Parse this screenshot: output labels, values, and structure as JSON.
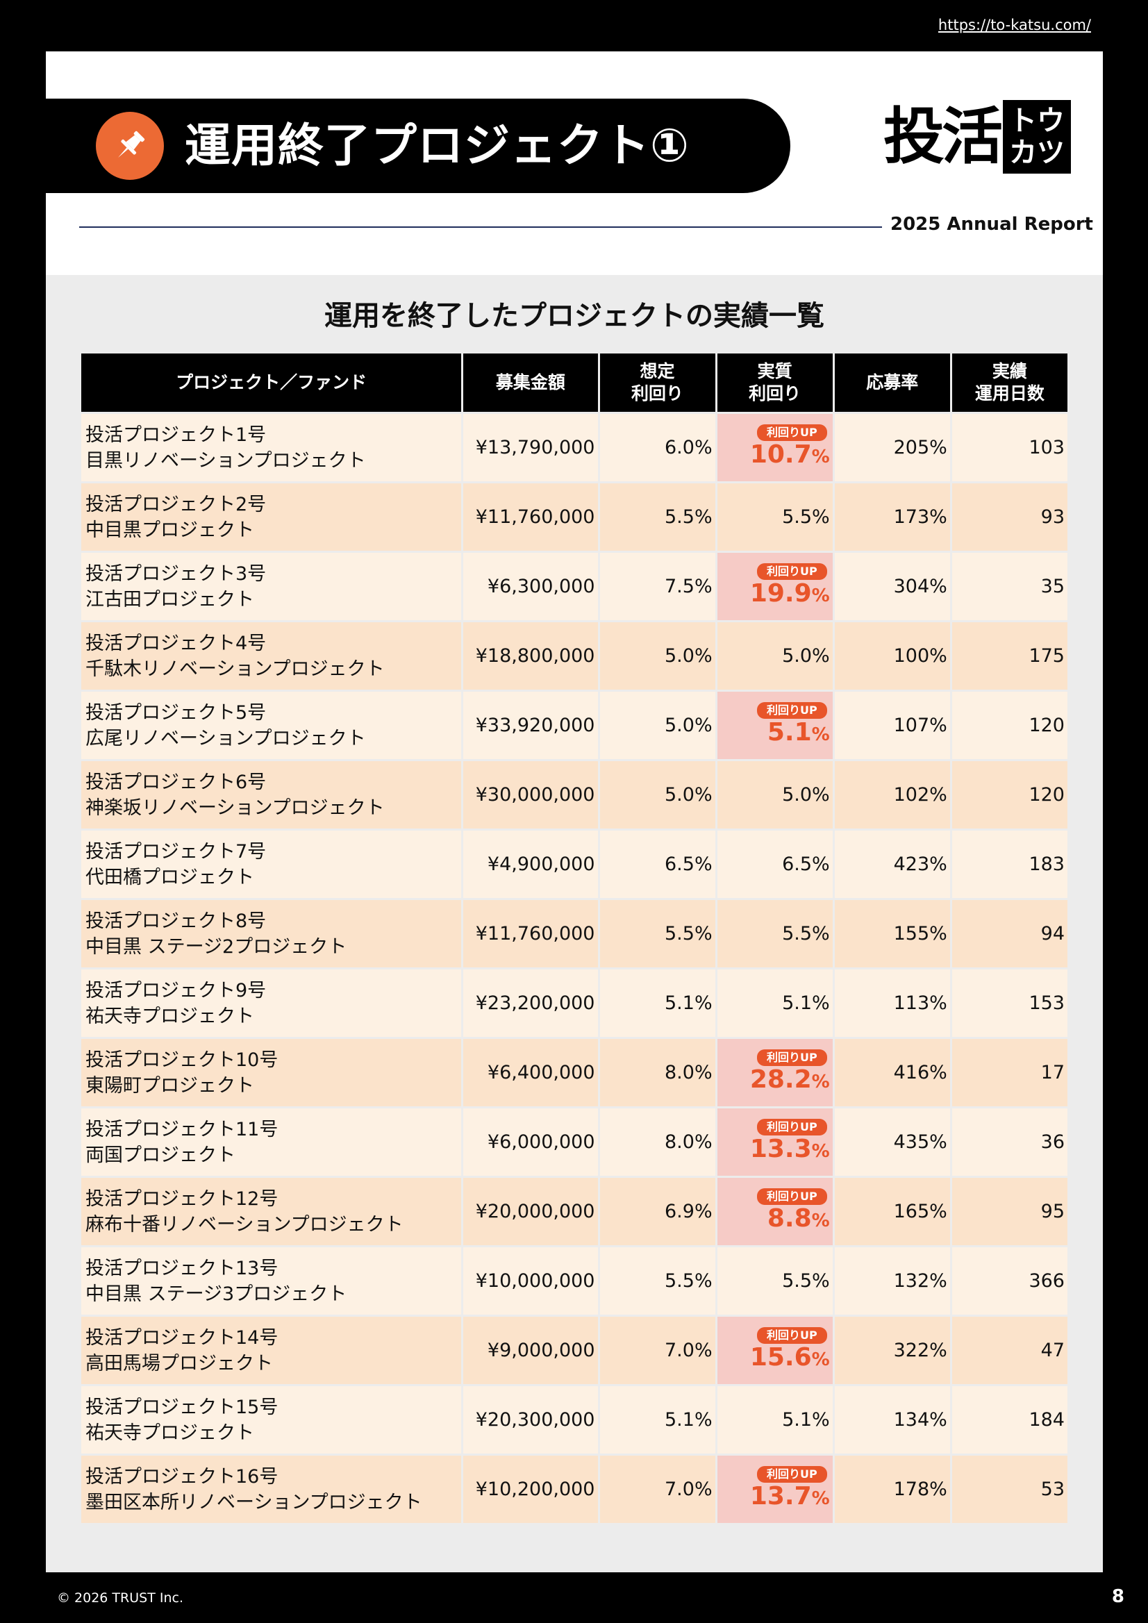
{
  "header": {
    "url": "https://to-katsu.com/",
    "title": "運用終了プロジェクト①",
    "logo_main": "投活",
    "logo_box_top": "トウ",
    "logo_box_bottom": "カツ",
    "report_label": "2025 Annual Report",
    "pin_icon": "pushpin-icon",
    "accent_color": "#ec6a34"
  },
  "section_title": "運用を終了したプロジェクトの実績一覧",
  "table": {
    "headers": {
      "project": "プロジェクト／ファンド",
      "amount": "募集金額",
      "expected_1": "想定",
      "expected_2": "利回り",
      "actual_1": "実質",
      "actual_2": "利回り",
      "rate": "応募率",
      "days_1": "実績",
      "days_2": "運用日数"
    },
    "badge_label": "利回りUP",
    "rows": [
      {
        "line1": "投活プロジェクト1号",
        "line2": "目黒リノベーションプロジェクト",
        "amount": "¥13,790,000",
        "expected": "6.0%",
        "actual": "10.7",
        "up": true,
        "rate": "205%",
        "days": "103"
      },
      {
        "line1": "投活プロジェクト2号",
        "line2": "中目黒プロジェクト",
        "amount": "¥11,760,000",
        "expected": "5.5%",
        "actual": "5.5%",
        "up": false,
        "rate": "173%",
        "days": "93"
      },
      {
        "line1": "投活プロジェクト3号",
        "line2": "江古田プロジェクト",
        "amount": "¥6,300,000",
        "expected": "7.5%",
        "actual": "19.9",
        "up": true,
        "rate": "304%",
        "days": "35"
      },
      {
        "line1": "投活プロジェクト4号",
        "line2": "千駄木リノベーションプロジェクト",
        "amount": "¥18,800,000",
        "expected": "5.0%",
        "actual": "5.0%",
        "up": false,
        "rate": "100%",
        "days": "175"
      },
      {
        "line1": "投活プロジェクト5号",
        "line2": "広尾リノベーションプロジェクト",
        "amount": "¥33,920,000",
        "expected": "5.0%",
        "actual": "5.1",
        "up": true,
        "rate": "107%",
        "days": "120"
      },
      {
        "line1": "投活プロジェクト6号",
        "line2": "神楽坂リノベーションプロジェクト",
        "amount": "¥30,000,000",
        "expected": "5.0%",
        "actual": "5.0%",
        "up": false,
        "rate": "102%",
        "days": "120"
      },
      {
        "line1": "投活プロジェクト7号",
        "line2": "代田橋プロジェクト",
        "amount": "¥4,900,000",
        "expected": "6.5%",
        "actual": "6.5%",
        "up": false,
        "rate": "423%",
        "days": "183"
      },
      {
        "line1": "投活プロジェクト8号",
        "line2": "中目黒 ステージ2プロジェクト",
        "amount": "¥11,760,000",
        "expected": "5.5%",
        "actual": "5.5%",
        "up": false,
        "rate": "155%",
        "days": "94"
      },
      {
        "line1": "投活プロジェクト9号",
        "line2": "祐天寺プロジェクト",
        "amount": "¥23,200,000",
        "expected": "5.1%",
        "actual": "5.1%",
        "up": false,
        "rate": "113%",
        "days": "153"
      },
      {
        "line1": "投活プロジェクト10号",
        "line2": "東陽町プロジェクト",
        "amount": "¥6,400,000",
        "expected": "8.0%",
        "actual": "28.2",
        "up": true,
        "rate": "416%",
        "days": "17"
      },
      {
        "line1": "投活プロジェクト11号",
        "line2": "両国プロジェクト",
        "amount": "¥6,000,000",
        "expected": "8.0%",
        "actual": "13.3",
        "up": true,
        "rate": "435%",
        "days": "36"
      },
      {
        "line1": "投活プロジェクト12号",
        "line2": "麻布十番リノベーションプロジェクト",
        "amount": "¥20,000,000",
        "expected": "6.9%",
        "actual": "8.8",
        "up": true,
        "rate": "165%",
        "days": "95"
      },
      {
        "line1": "投活プロジェクト13号",
        "line2": "中目黒 ステージ3プロジェクト",
        "amount": "¥10,000,000",
        "expected": "5.5%",
        "actual": "5.5%",
        "up": false,
        "rate": "132%",
        "days": "366"
      },
      {
        "line1": "投活プロジェクト14号",
        "line2": "高田馬場プロジェクト",
        "amount": "¥9,000,000",
        "expected": "7.0%",
        "actual": "15.6",
        "up": true,
        "rate": "322%",
        "days": "47"
      },
      {
        "line1": "投活プロジェクト15号",
        "line2": "祐天寺プロジェクト",
        "amount": "¥20,300,000",
        "expected": "5.1%",
        "actual": "5.1%",
        "up": false,
        "rate": "134%",
        "days": "184"
      },
      {
        "line1": "投活プロジェクト16号",
        "line2": "墨田区本所リノベーションプロジェクト",
        "amount": "¥10,200,000",
        "expected": "7.0%",
        "actual": "13.7",
        "up": true,
        "rate": "178%",
        "days": "53"
      }
    ]
  },
  "footer": {
    "copyright": "© 2026 TRUST Inc.",
    "page_number": "8"
  }
}
